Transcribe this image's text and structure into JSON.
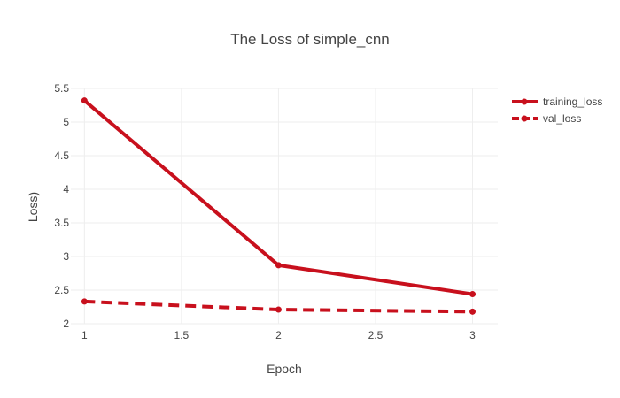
{
  "chart_data": {
    "type": "line",
    "title": "The Loss of simple_cnn",
    "xlabel": "Epoch",
    "ylabel": "Loss)",
    "x": [
      1,
      2,
      3
    ],
    "xlim": [
      0.93,
      3.13
    ],
    "ylim": [
      2,
      5.5
    ],
    "xticks": [
      "1",
      "1.5",
      "2",
      "2.5",
      "3"
    ],
    "yticks": [
      "2",
      "2.5",
      "3",
      "3.5",
      "4",
      "4.5",
      "5",
      "5.5"
    ],
    "grid": true,
    "legend_position": "top-right",
    "series": [
      {
        "name": "training_loss",
        "values": [
          5.32,
          2.87,
          2.44
        ],
        "color": "#c8101d",
        "dash": "solid"
      },
      {
        "name": "val_loss",
        "values": [
          2.33,
          2.21,
          2.18
        ],
        "color": "#c8101d",
        "dash": "dash"
      }
    ]
  }
}
